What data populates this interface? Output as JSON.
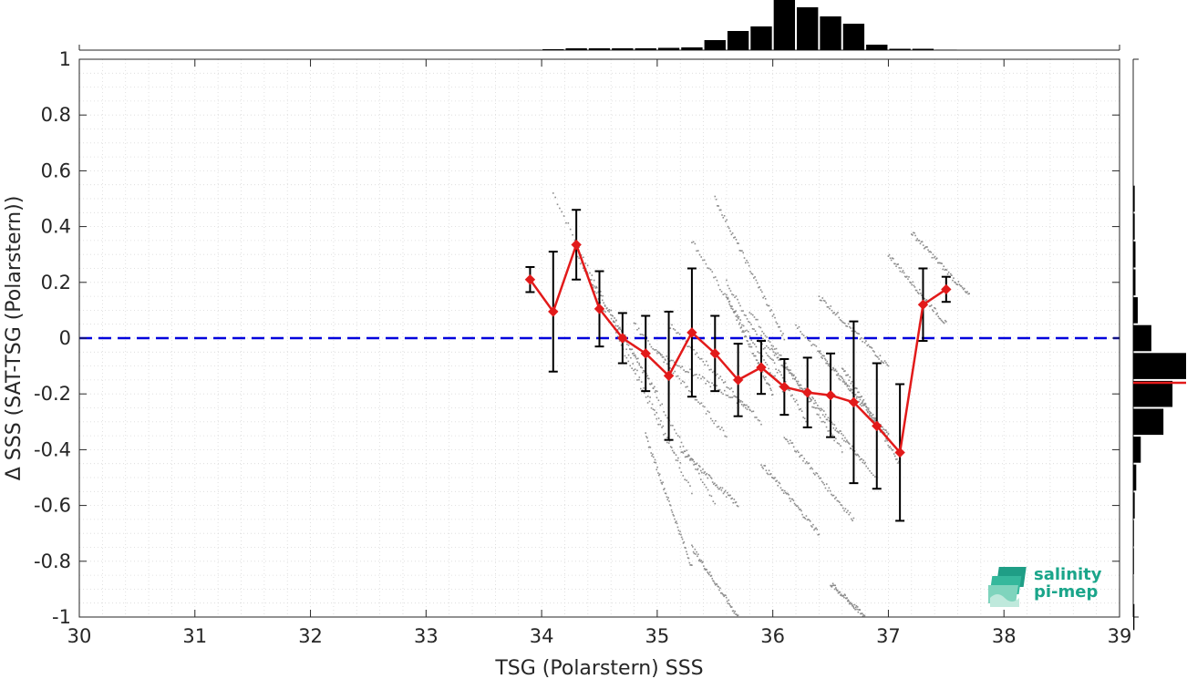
{
  "chart_data": {
    "type": "scatter",
    "xlabel": "TSG (Polarstern) SSS",
    "ylabel": "Δ SSS (SAT-TSG (Polarstern))",
    "xlim": [
      30,
      39
    ],
    "ylim": [
      -1,
      1
    ],
    "xticks": [
      "30",
      "31",
      "32",
      "33",
      "34",
      "35",
      "36",
      "37",
      "38",
      "39"
    ],
    "yticks": [
      "1",
      "0.8",
      "0.6",
      "0.4",
      "0.2",
      "0",
      "-0.2",
      "-0.4",
      "-0.6",
      "-0.8",
      "-1"
    ],
    "grid": true,
    "zero_line": {
      "y": 0,
      "style": "dashed",
      "color": "#0000dd"
    },
    "binned_mean": {
      "color": "#e21a1a",
      "x": [
        33.9,
        34.1,
        34.3,
        34.5,
        34.7,
        34.9,
        35.1,
        35.3,
        35.5,
        35.7,
        35.9,
        36.1,
        36.3,
        36.5,
        36.7,
        36.9,
        37.1,
        37.3,
        37.5
      ],
      "y": [
        0.21,
        0.095,
        0.335,
        0.105,
        0.0,
        -0.055,
        -0.135,
        0.02,
        -0.055,
        -0.15,
        -0.105,
        -0.175,
        -0.195,
        -0.205,
        -0.23,
        -0.315,
        -0.41,
        0.12,
        0.175
      ],
      "err": [
        0.045,
        0.215,
        0.125,
        0.135,
        0.09,
        0.135,
        0.23,
        0.23,
        0.135,
        0.13,
        0.095,
        0.1,
        0.125,
        0.15,
        0.29,
        0.225,
        0.245,
        0.13,
        0.045
      ]
    },
    "scatter_color": "#8c8c8c",
    "scatter_streaks": [
      {
        "x": [
          34.1,
          35.2
        ],
        "y": [
          0.52,
          -0.45
        ]
      },
      {
        "x": [
          34.4,
          35.3
        ],
        "y": [
          0.22,
          -0.55
        ]
      },
      {
        "x": [
          34.6,
          35.5
        ],
        "y": [
          0.1,
          -0.6
        ]
      },
      {
        "x": [
          35.1,
          35.9
        ],
        "y": [
          0.05,
          -0.3
        ]
      },
      {
        "x": [
          35.3,
          36.1
        ],
        "y": [
          0.35,
          -0.2
        ]
      },
      {
        "x": [
          35.6,
          36.3
        ],
        "y": [
          0.2,
          -0.3
        ]
      },
      {
        "x": [
          35.8,
          36.6
        ],
        "y": [
          0.1,
          -0.4
        ]
      },
      {
        "x": [
          35.9,
          36.8
        ],
        "y": [
          0.0,
          -0.45
        ]
      },
      {
        "x": [
          36.0,
          36.9
        ],
        "y": [
          -0.05,
          -0.5
        ]
      },
      {
        "x": [
          36.2,
          37.0
        ],
        "y": [
          0.05,
          -0.35
        ]
      },
      {
        "x": [
          34.3,
          35.0
        ],
        "y": [
          0.3,
          -0.2
        ]
      },
      {
        "x": [
          34.8,
          35.6
        ],
        "y": [
          0.05,
          -0.35
        ]
      },
      {
        "x": [
          35.0,
          35.8
        ],
        "y": [
          -0.05,
          -0.25
        ]
      },
      {
        "x": [
          36.4,
          37.0
        ],
        "y": [
          -0.05,
          -0.35
        ]
      },
      {
        "x": [
          36.6,
          37.1
        ],
        "y": [
          -0.1,
          -0.45
        ]
      },
      {
        "x": [
          35.5,
          36.1
        ],
        "y": [
          0.5,
          0.0
        ]
      },
      {
        "x": [
          36.4,
          37.0
        ],
        "y": [
          0.15,
          -0.1
        ]
      },
      {
        "x": [
          37.2,
          37.7
        ],
        "y": [
          0.38,
          0.15
        ]
      },
      {
        "x": [
          37.0,
          37.5
        ],
        "y": [
          0.3,
          0.05
        ]
      },
      {
        "x": [
          34.9,
          35.3
        ],
        "y": [
          -0.35,
          -0.82
        ]
      },
      {
        "x": [
          35.3,
          35.7
        ],
        "y": [
          -0.75,
          -1.0
        ]
      },
      {
        "x": [
          36.5,
          36.8
        ],
        "y": [
          -0.88,
          -1.0
        ]
      },
      {
        "x": [
          36.1,
          36.7
        ],
        "y": [
          -0.35,
          -0.65
        ]
      },
      {
        "x": [
          35.9,
          36.4
        ],
        "y": [
          -0.45,
          -0.7
        ]
      },
      {
        "x": [
          35.6,
          36.0
        ],
        "y": [
          0.15,
          -0.2
        ]
      },
      {
        "x": [
          35.2,
          35.7
        ],
        "y": [
          -0.4,
          -0.6
        ]
      }
    ],
    "top_histogram": {
      "bins": [
        33.9,
        34.1,
        34.3,
        34.5,
        34.7,
        34.9,
        35.1,
        35.3,
        35.5,
        35.7,
        35.9,
        36.1,
        36.3,
        36.5,
        36.7,
        36.9,
        37.1,
        37.3,
        37.5
      ],
      "counts": [
        0.3,
        1,
        2,
        2,
        2,
        2,
        2.5,
        3,
        11,
        21,
        26,
        55,
        47,
        37,
        29,
        6,
        1.5,
        1.5,
        0.5
      ]
    },
    "right_histogram": {
      "bins": [
        0.5,
        0.4,
        0.3,
        0.2,
        0.1,
        0.0,
        -0.1,
        -0.2,
        -0.3,
        -0.4,
        -0.5,
        -0.6,
        -0.7,
        -0.8,
        -0.9,
        -1.0
      ],
      "counts": [
        1,
        1,
        1.5,
        1.5,
        3,
        12,
        35,
        26,
        20,
        5,
        2,
        1,
        0.5,
        0.5,
        0.3,
        0.8
      ],
      "mean_line": {
        "y": -0.16,
        "color": "#e21a1a"
      }
    }
  },
  "logo": {
    "line1": "salinity",
    "line2": "pi-mep",
    "color": "#1aa58a"
  }
}
